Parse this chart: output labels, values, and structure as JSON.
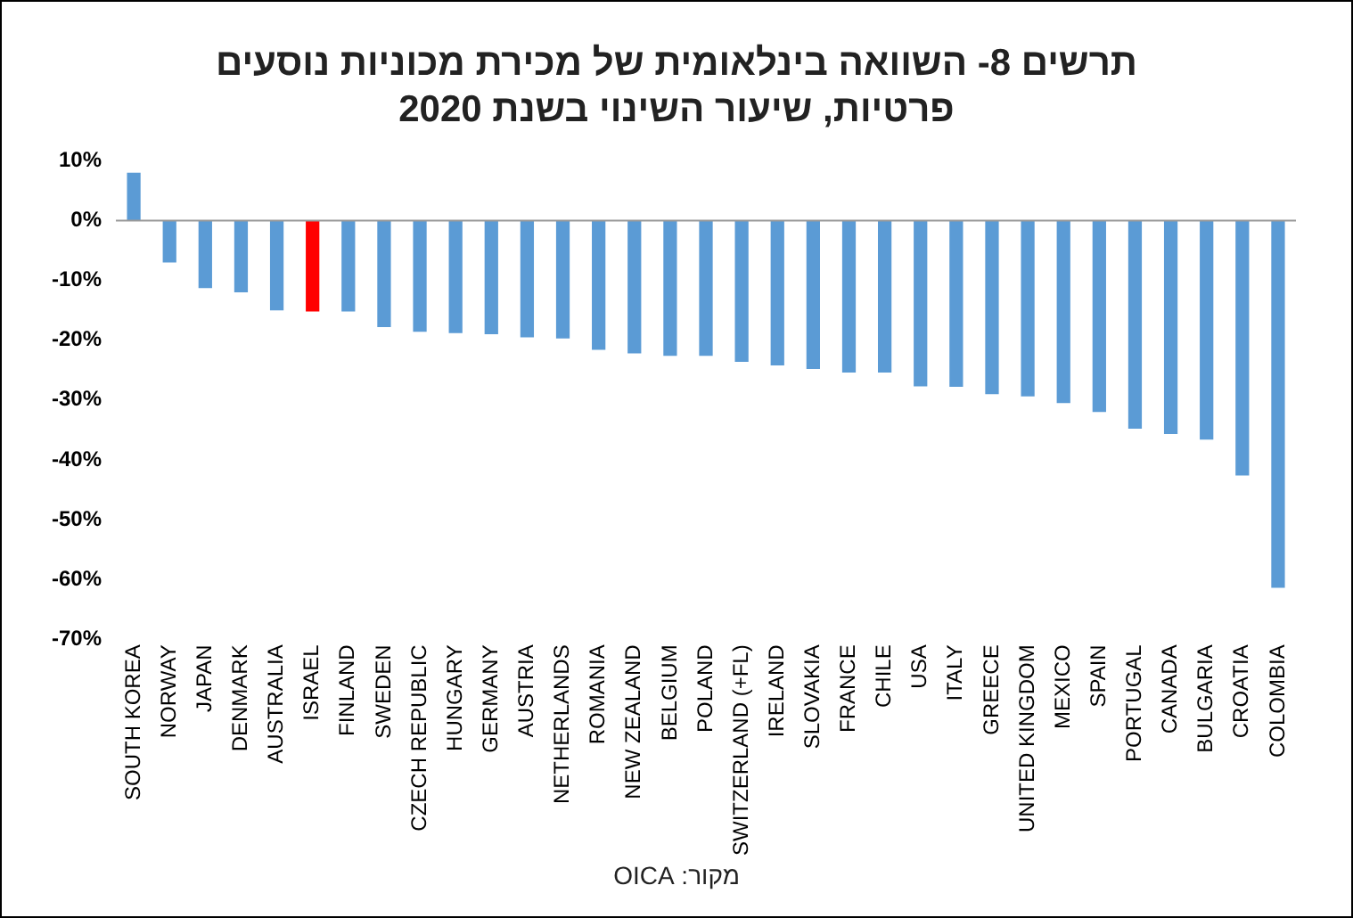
{
  "chart_data": {
    "type": "bar",
    "title": "תרשים 8- השוואה בינלאומית של מכירת מכוניות נוסעים פרטיות, שיעור השינוי בשנת 2020",
    "categories": [
      "SOUTH KOREA",
      "NORWAY",
      "JAPAN",
      "DENMARK",
      "AUSTRALIA",
      "ISRAEL",
      "FINLAND",
      "SWEDEN",
      "CZECH REPUBLIC",
      "HUNGARY",
      "GERMANY",
      "AUSTRIA",
      "NETHERLANDS",
      "ROMANIA",
      "NEW ZEALAND",
      "BELGIUM",
      "POLAND",
      "SWITZERLAND (+FL)",
      "IRELAND",
      "SLOVAKIA",
      "FRANCE",
      "CHILE",
      "USA",
      "ITALY",
      "GREECE",
      "UNITED KINGDOM",
      "MEXICO",
      "SPAIN",
      "PORTUGAL",
      "CANADA",
      "BULGARIA",
      "CROATIA",
      "COLOMBIA"
    ],
    "values": [
      8,
      -7,
      -11.3,
      -12,
      -15,
      -15.2,
      -15.2,
      -17.8,
      -18.6,
      -18.8,
      -19,
      -19.5,
      -19.7,
      -21.6,
      -22.2,
      -22.6,
      -22.6,
      -23.6,
      -24.2,
      -24.8,
      -25.4,
      -25.4,
      -27.7,
      -27.8,
      -29,
      -29.4,
      -30.5,
      -32,
      -34.8,
      -35.7,
      -36.6,
      -42.6,
      -61.4
    ],
    "colors": [
      "#5b9bd5",
      "#5b9bd5",
      "#5b9bd5",
      "#5b9bd5",
      "#5b9bd5",
      "#ff0000",
      "#5b9bd5",
      "#5b9bd5",
      "#5b9bd5",
      "#5b9bd5",
      "#5b9bd5",
      "#5b9bd5",
      "#5b9bd5",
      "#5b9bd5",
      "#5b9bd5",
      "#5b9bd5",
      "#5b9bd5",
      "#5b9bd5",
      "#5b9bd5",
      "#5b9bd5",
      "#5b9bd5",
      "#5b9bd5",
      "#5b9bd5",
      "#5b9bd5",
      "#5b9bd5",
      "#5b9bd5",
      "#5b9bd5",
      "#5b9bd5",
      "#5b9bd5",
      "#5b9bd5",
      "#5b9bd5",
      "#5b9bd5",
      "#5b9bd5"
    ],
    "ylim": [
      -70,
      10
    ],
    "yticks": [
      {
        "value": 10,
        "label": "10%"
      },
      {
        "value": 0,
        "label": "0%"
      },
      {
        "value": -10,
        "label": "-10%"
      },
      {
        "value": -20,
        "label": "-20%"
      },
      {
        "value": -30,
        "label": "-30%"
      },
      {
        "value": -40,
        "label": "-40%"
      },
      {
        "value": -50,
        "label": "-50%"
      },
      {
        "value": -60,
        "label": "-60%"
      },
      {
        "value": -70,
        "label": "-70%"
      }
    ],
    "grid": false,
    "legend": false,
    "ref_lines": [
      {
        "axis": "y",
        "value": 0,
        "color": "#999999"
      }
    ],
    "annotations": [
      "מקור: OICA"
    ]
  }
}
